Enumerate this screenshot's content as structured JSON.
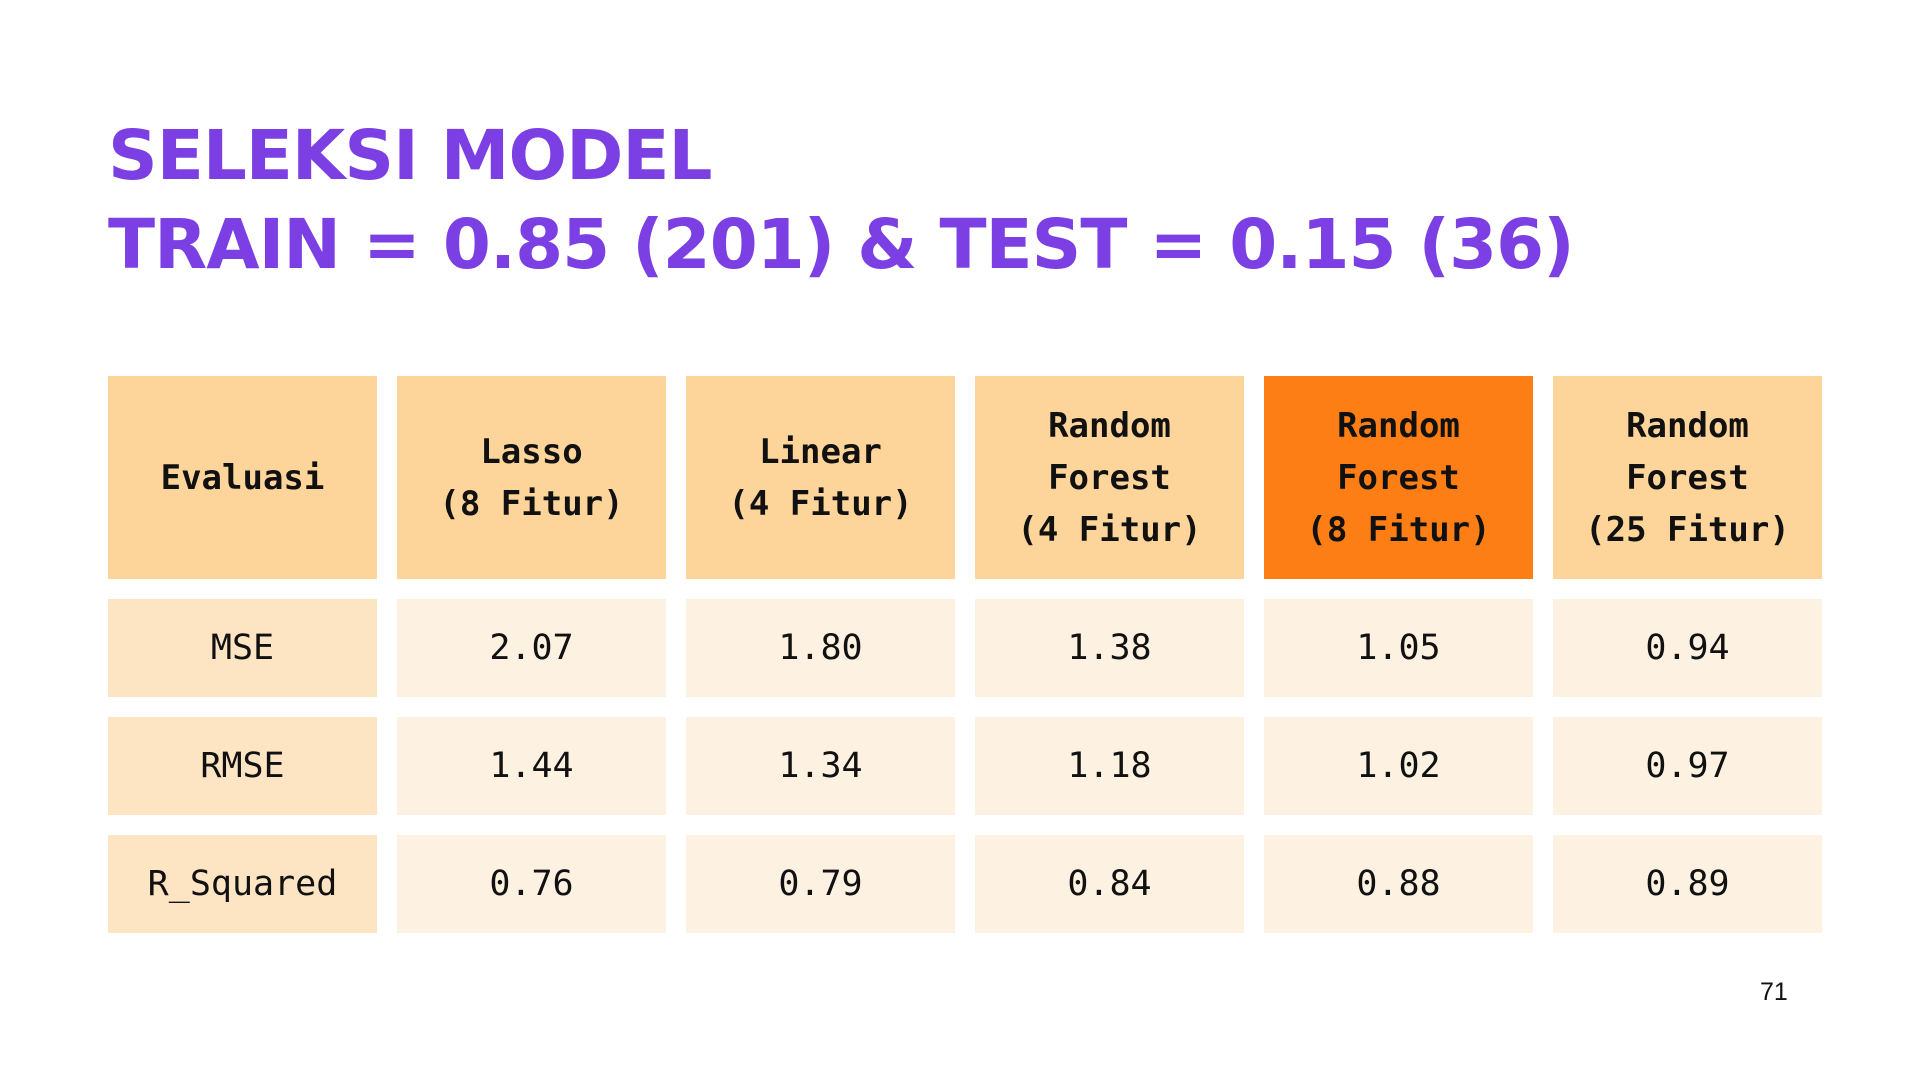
{
  "slide": {
    "title_lines": [
      "SELEKSI MODEL",
      "TRAIN = 0.85 (201) & TEST = 0.15 (36)"
    ],
    "page_number": "71",
    "colors": {
      "title": "#7b3fe4",
      "header_cell": "#fdd59a",
      "highlight_header_cell": "#fd7e14",
      "metric_label_cell": "#fde4c3",
      "value_cell": "#fdf1e2",
      "text": "#111111"
    }
  },
  "table": {
    "headers": [
      [
        "Evaluasi"
      ],
      [
        "Lasso",
        "(8 Fitur)"
      ],
      [
        "Linear",
        "(4 Fitur)"
      ],
      [
        "Random",
        "Forest",
        "(4 Fitur)"
      ],
      [
        "Random",
        "Forest",
        "(8 Fitur)"
      ],
      [
        "Random",
        "Forest",
        "(25 Fitur)"
      ]
    ],
    "highlighted_model": "Random Forest (8 Fitur)",
    "rows": [
      {
        "metric": "MSE",
        "values": [
          "2.07",
          "1.80",
          "1.38",
          "1.05",
          "0.94"
        ]
      },
      {
        "metric": "RMSE",
        "values": [
          "1.44",
          "1.34",
          "1.18",
          "1.02",
          "0.97"
        ]
      },
      {
        "metric": "R_Squared",
        "values": [
          "0.76",
          "0.79",
          "0.84",
          "0.88",
          "0.89"
        ]
      }
    ]
  }
}
